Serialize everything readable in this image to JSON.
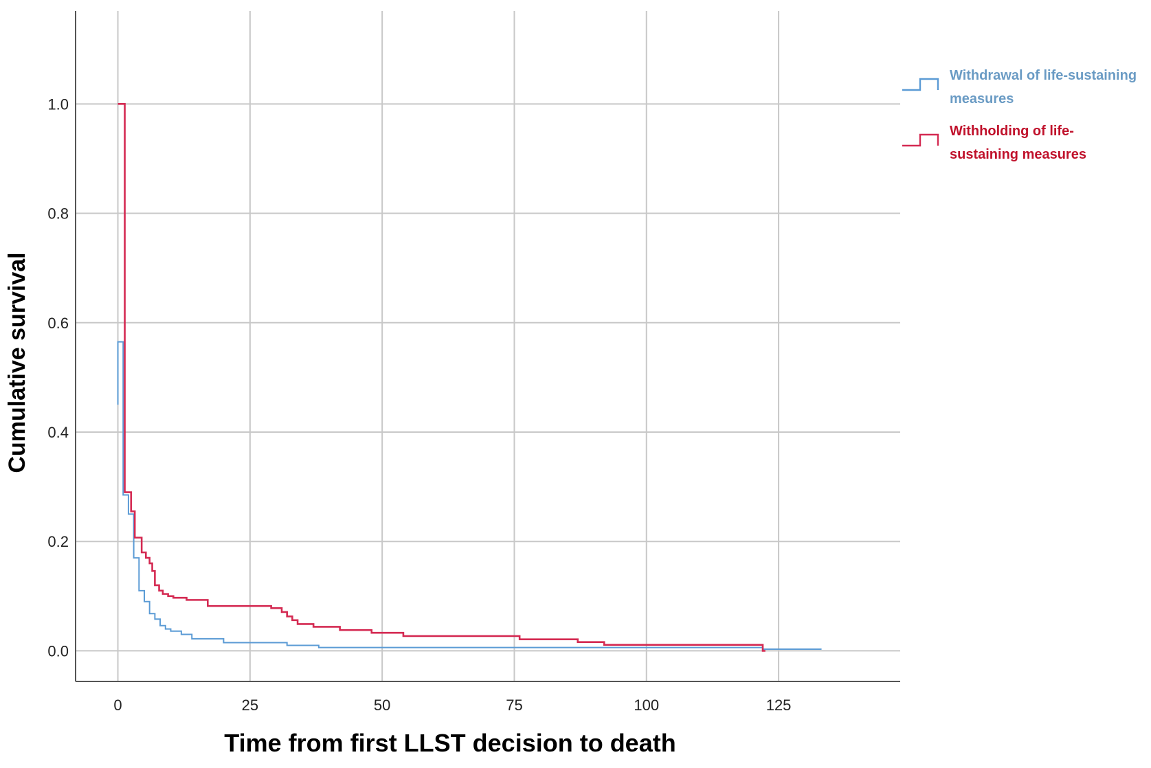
{
  "chart_data": {
    "type": "line",
    "title": "",
    "xlabel": "Time from first LLST decision to death",
    "ylabel": "Cumulative survival",
    "xlim": [
      -8,
      148
    ],
    "ylim": [
      -0.056,
      1.17
    ],
    "x_ticks": [
      0,
      25,
      50,
      75,
      100,
      125
    ],
    "x_tick_labels": [
      "0",
      "25",
      "50",
      "75",
      "100",
      "125"
    ],
    "y_ticks": [
      0.0,
      0.2,
      0.4,
      0.6,
      0.8,
      1.0
    ],
    "y_tick_labels": [
      "0.0",
      "0.2",
      "0.4",
      "0.6",
      "0.8",
      "1.0"
    ],
    "grid": true,
    "legend_position": "right",
    "step": true,
    "series": [
      {
        "name": "Withdrawal of life-sustaining measures",
        "color": "#5b9bd5",
        "label_color": "#6a9bc4",
        "x": [
          0,
          0,
          1,
          2,
          3,
          4,
          5,
          6,
          7,
          8,
          9,
          10,
          12,
          14,
          20,
          32,
          38,
          122,
          133
        ],
        "y": [
          0.45,
          0.565,
          0.285,
          0.25,
          0.17,
          0.11,
          0.09,
          0.068,
          0.058,
          0.046,
          0.04,
          0.036,
          0.03,
          0.022,
          0.015,
          0.01,
          0.006,
          0.003,
          0.002
        ]
      },
      {
        "name": "Withholding of life-sustaining measures",
        "color": "#d42a52",
        "label_color": "#c0112b",
        "x": [
          0,
          1,
          1.3,
          2.5,
          3.2,
          4.5,
          5.3,
          6,
          6.5,
          7,
          7.8,
          8.5,
          9.5,
          10.5,
          13,
          17,
          29,
          31,
          32,
          33,
          34,
          37,
          42,
          48,
          54,
          76,
          87,
          92,
          122,
          122.5
        ],
        "y": [
          1.0,
          1.0,
          0.29,
          0.255,
          0.207,
          0.18,
          0.17,
          0.16,
          0.146,
          0.12,
          0.11,
          0.104,
          0.1,
          0.097,
          0.093,
          0.082,
          0.078,
          0.071,
          0.063,
          0.056,
          0.049,
          0.044,
          0.038,
          0.033,
          0.027,
          0.021,
          0.016,
          0.011,
          0.0,
          0.0
        ]
      }
    ]
  },
  "legend": {
    "items": [
      {
        "lines": [
          "Withdrawal of life-sustaining",
          "measures"
        ]
      },
      {
        "lines": [
          "Withholding of life-",
          "sustaining measures"
        ]
      }
    ]
  }
}
